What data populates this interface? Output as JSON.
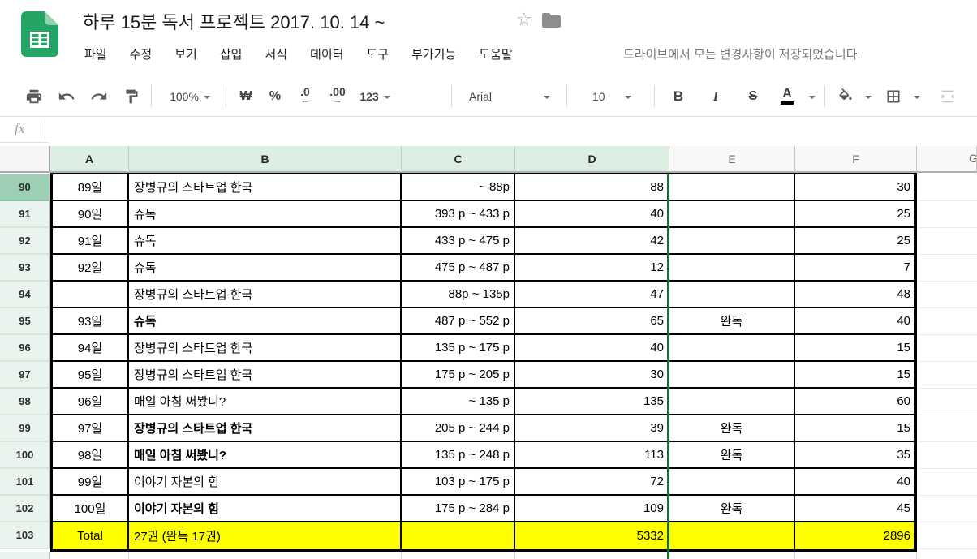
{
  "app": {
    "title": "하루 15분 독서 프로젝트 2017. 10. 14 ~",
    "save_status": "드라이브에서 모든 변경사항이 저장되었습니다.",
    "menus": [
      "파일",
      "수정",
      "보기",
      "삽입",
      "서식",
      "데이터",
      "도구",
      "부가기능",
      "도움말"
    ]
  },
  "toolbar": {
    "zoom": "100%",
    "currency": "₩",
    "percent": "%",
    "decimal_decrease": ".0",
    "decimal_increase": ".00",
    "number_format": "123",
    "font_family": "Arial",
    "font_size": "10",
    "bold": "B",
    "italic": "I",
    "strikethrough": "S",
    "text_color": "A"
  },
  "formula_bar": {
    "label": "fx",
    "value": ""
  },
  "grid": {
    "column_headers": [
      "A",
      "B",
      "C",
      "D",
      "E",
      "F",
      "G"
    ],
    "selected_column_headers": [
      "A",
      "B",
      "C",
      "D"
    ],
    "active_row_header": "90",
    "rows": [
      {
        "num": "90",
        "day": "89일",
        "book": "장병규의 스타트업 한국",
        "pages": "~ 88p",
        "pages_read": "88",
        "status": "",
        "minutes": "30",
        "bold": false,
        "total": false
      },
      {
        "num": "91",
        "day": "90일",
        "book": "슈독",
        "pages": "393 p ~ 433 p",
        "pages_read": "40",
        "status": "",
        "minutes": "25",
        "bold": false,
        "total": false
      },
      {
        "num": "92",
        "day": "91일",
        "book": "슈독",
        "pages": "433 p ~ 475 p",
        "pages_read": "42",
        "status": "",
        "minutes": "25",
        "bold": false,
        "total": false
      },
      {
        "num": "93",
        "day": "92일",
        "book": "슈독",
        "pages": "475 p ~ 487 p",
        "pages_read": "12",
        "status": "",
        "minutes": "7",
        "bold": false,
        "total": false
      },
      {
        "num": "94",
        "day": "",
        "book": "장병규의 스타트업 한국",
        "pages": "88p ~ 135p",
        "pages_read": "47",
        "status": "",
        "minutes": "48",
        "bold": false,
        "total": false
      },
      {
        "num": "95",
        "day": "93일",
        "book": "슈독",
        "pages": "487 p ~ 552 p",
        "pages_read": "65",
        "status": "완독",
        "minutes": "40",
        "bold": true,
        "total": false
      },
      {
        "num": "96",
        "day": "94일",
        "book": "장병규의 스타트업 한국",
        "pages": "135 p ~ 175 p",
        "pages_read": "40",
        "status": "",
        "minutes": "15",
        "bold": false,
        "total": false
      },
      {
        "num": "97",
        "day": "95일",
        "book": "장병규의 스타트업 한국",
        "pages": "175 p ~ 205 p",
        "pages_read": "30",
        "status": "",
        "minutes": "15",
        "bold": false,
        "total": false
      },
      {
        "num": "98",
        "day": "96일",
        "book": "매일 아침 써봤니?",
        "pages": "~ 135 p",
        "pages_read": "135",
        "status": "",
        "minutes": "60",
        "bold": false,
        "total": false
      },
      {
        "num": "99",
        "day": "97일",
        "book": "장병규의 스타트업 한국",
        "pages": "205 p ~ 244 p",
        "pages_read": "39",
        "status": "완독",
        "minutes": "15",
        "bold": true,
        "total": false
      },
      {
        "num": "100",
        "day": "98일",
        "book": "매일 아침 써봤니?",
        "pages": "135 p ~ 248 p",
        "pages_read": "113",
        "status": "완독",
        "minutes": "35",
        "bold": true,
        "total": false
      },
      {
        "num": "101",
        "day": "99일",
        "book": "이야기 자본의 힘",
        "pages": "103 p ~ 175 p",
        "pages_read": "72",
        "status": "",
        "minutes": "40",
        "bold": false,
        "total": false
      },
      {
        "num": "102",
        "day": "100일",
        "book": "이야기 자본의 힘",
        "pages": "175 p ~ 284 p",
        "pages_read": "109",
        "status": "완독",
        "minutes": "45",
        "bold": true,
        "total": false
      },
      {
        "num": "103",
        "day": "Total",
        "book": "27권 (완독 17권)",
        "pages": "",
        "pages_read": "5332",
        "status": "",
        "minutes": "2896",
        "bold": false,
        "total": true
      }
    ]
  },
  "colors": {
    "logo_green": "#23a566",
    "logo_fold_green": "#8fd2af",
    "selected_header_green": "#ddeee3",
    "active_row_header_green": "#9ccfb4",
    "selection_border_green": "#1a6e3c",
    "total_row_yellow": "#ffff00"
  }
}
